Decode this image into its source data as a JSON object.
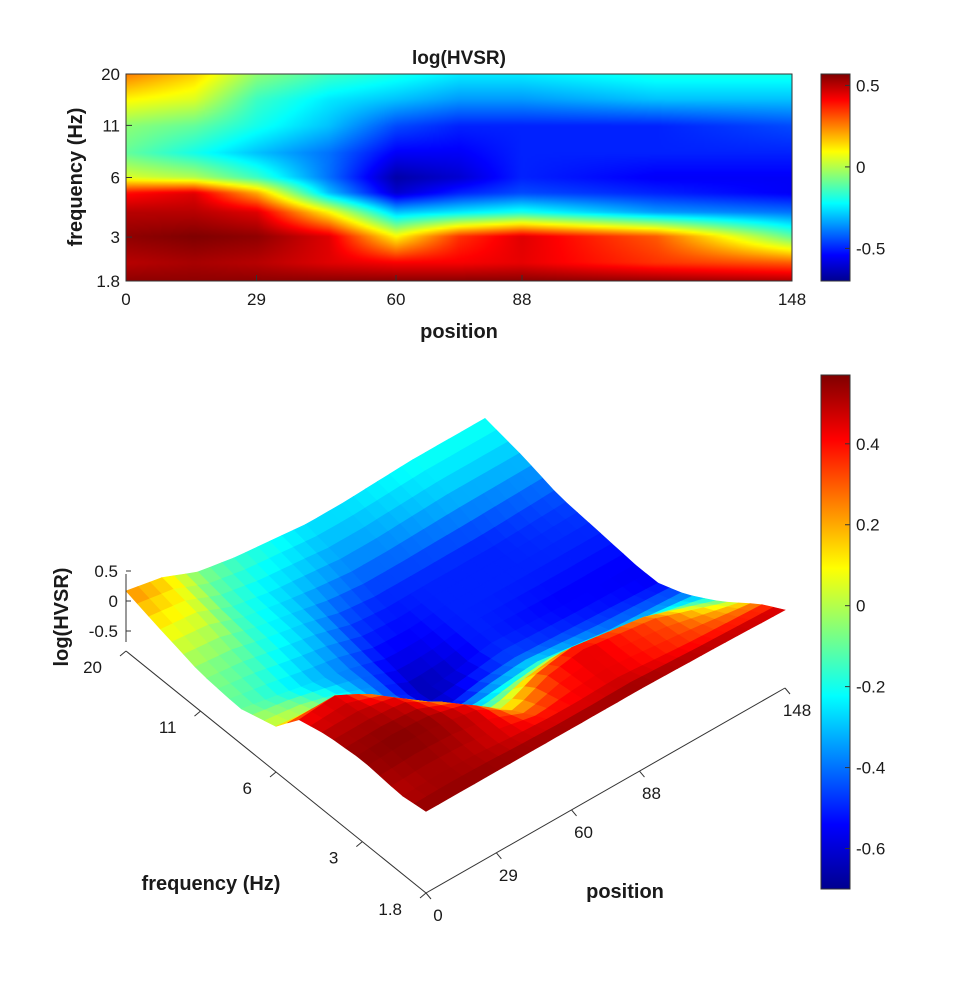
{
  "chart_data": [
    {
      "type": "heatmap",
      "title": "log(HVSR)",
      "xlabel": "position",
      "ylabel": "frequency (Hz)",
      "x_ticks": [
        "0",
        "29",
        "60",
        "88",
        "148"
      ],
      "y_ticks": [
        "20",
        "11",
        "6",
        "3",
        "1.8"
      ],
      "x_tick_values": [
        0,
        29,
        60,
        88,
        148
      ],
      "y_tick_values": [
        20,
        11,
        6,
        3,
        1.8
      ],
      "xlim": [
        0,
        148
      ],
      "ylim": [
        1.8,
        20
      ],
      "y_scale": "log",
      "colormap": "jet",
      "clim": [
        -0.7,
        0.57
      ],
      "colorbar_ticks": [
        "0.5",
        "0",
        "-0.5"
      ],
      "colorbar_tick_values": [
        0.5,
        0,
        -0.5
      ],
      "grid": false,
      "x_samples": [
        0,
        15,
        29,
        45,
        60,
        74,
        88,
        118,
        148
      ],
      "y_samples": [
        1.8,
        2.2,
        3,
        4,
        5,
        6,
        8,
        11,
        15,
        20
      ],
      "z": [
        [
          0.55,
          0.55,
          0.55,
          0.55,
          0.55,
          0.55,
          0.55,
          0.53,
          0.5
        ],
        [
          0.5,
          0.52,
          0.5,
          0.45,
          0.42,
          0.42,
          0.44,
          0.35,
          0.3
        ],
        [
          0.55,
          0.57,
          0.55,
          0.45,
          0.1,
          0.35,
          0.45,
          0.3,
          -0.1
        ],
        [
          0.5,
          0.5,
          0.45,
          0.1,
          -0.3,
          -0.25,
          -0.2,
          -0.35,
          -0.4
        ],
        [
          0.4,
          0.45,
          0.2,
          -0.3,
          -0.6,
          -0.5,
          -0.45,
          -0.5,
          -0.55
        ],
        [
          0.05,
          0.0,
          -0.15,
          -0.4,
          -0.65,
          -0.6,
          -0.5,
          -0.55,
          -0.55
        ],
        [
          -0.1,
          -0.2,
          -0.3,
          -0.4,
          -0.55,
          -0.55,
          -0.5,
          -0.5,
          -0.5
        ],
        [
          -0.05,
          -0.1,
          -0.2,
          -0.3,
          -0.45,
          -0.5,
          -0.5,
          -0.5,
          -0.45
        ],
        [
          0.1,
          0.05,
          -0.15,
          -0.25,
          -0.3,
          -0.35,
          -0.35,
          -0.3,
          -0.3
        ],
        [
          0.25,
          0.15,
          -0.05,
          -0.15,
          -0.2,
          -0.25,
          -0.25,
          -0.2,
          -0.2
        ]
      ]
    },
    {
      "type": "surface",
      "xlabel": "position",
      "ylabel": "frequency (Hz)",
      "zlabel": "log(HVSR)",
      "x_ticks": [
        "0",
        "29",
        "60",
        "88",
        "148"
      ],
      "y_ticks": [
        "20",
        "11",
        "6",
        "3",
        "1.8"
      ],
      "z_ticks": [
        "0.5",
        "0",
        "-0.5"
      ],
      "z_tick_values": [
        0.5,
        0,
        -0.5
      ],
      "colorbar_ticks": [
        "0.4",
        "0.2",
        "0",
        "-0.2",
        "-0.4",
        "-0.6"
      ],
      "colorbar_tick_values": [
        0.4,
        0.2,
        0,
        -0.2,
        -0.4,
        -0.6
      ],
      "colormap": "jet",
      "clim": [
        -0.7,
        0.57
      ]
    }
  ]
}
